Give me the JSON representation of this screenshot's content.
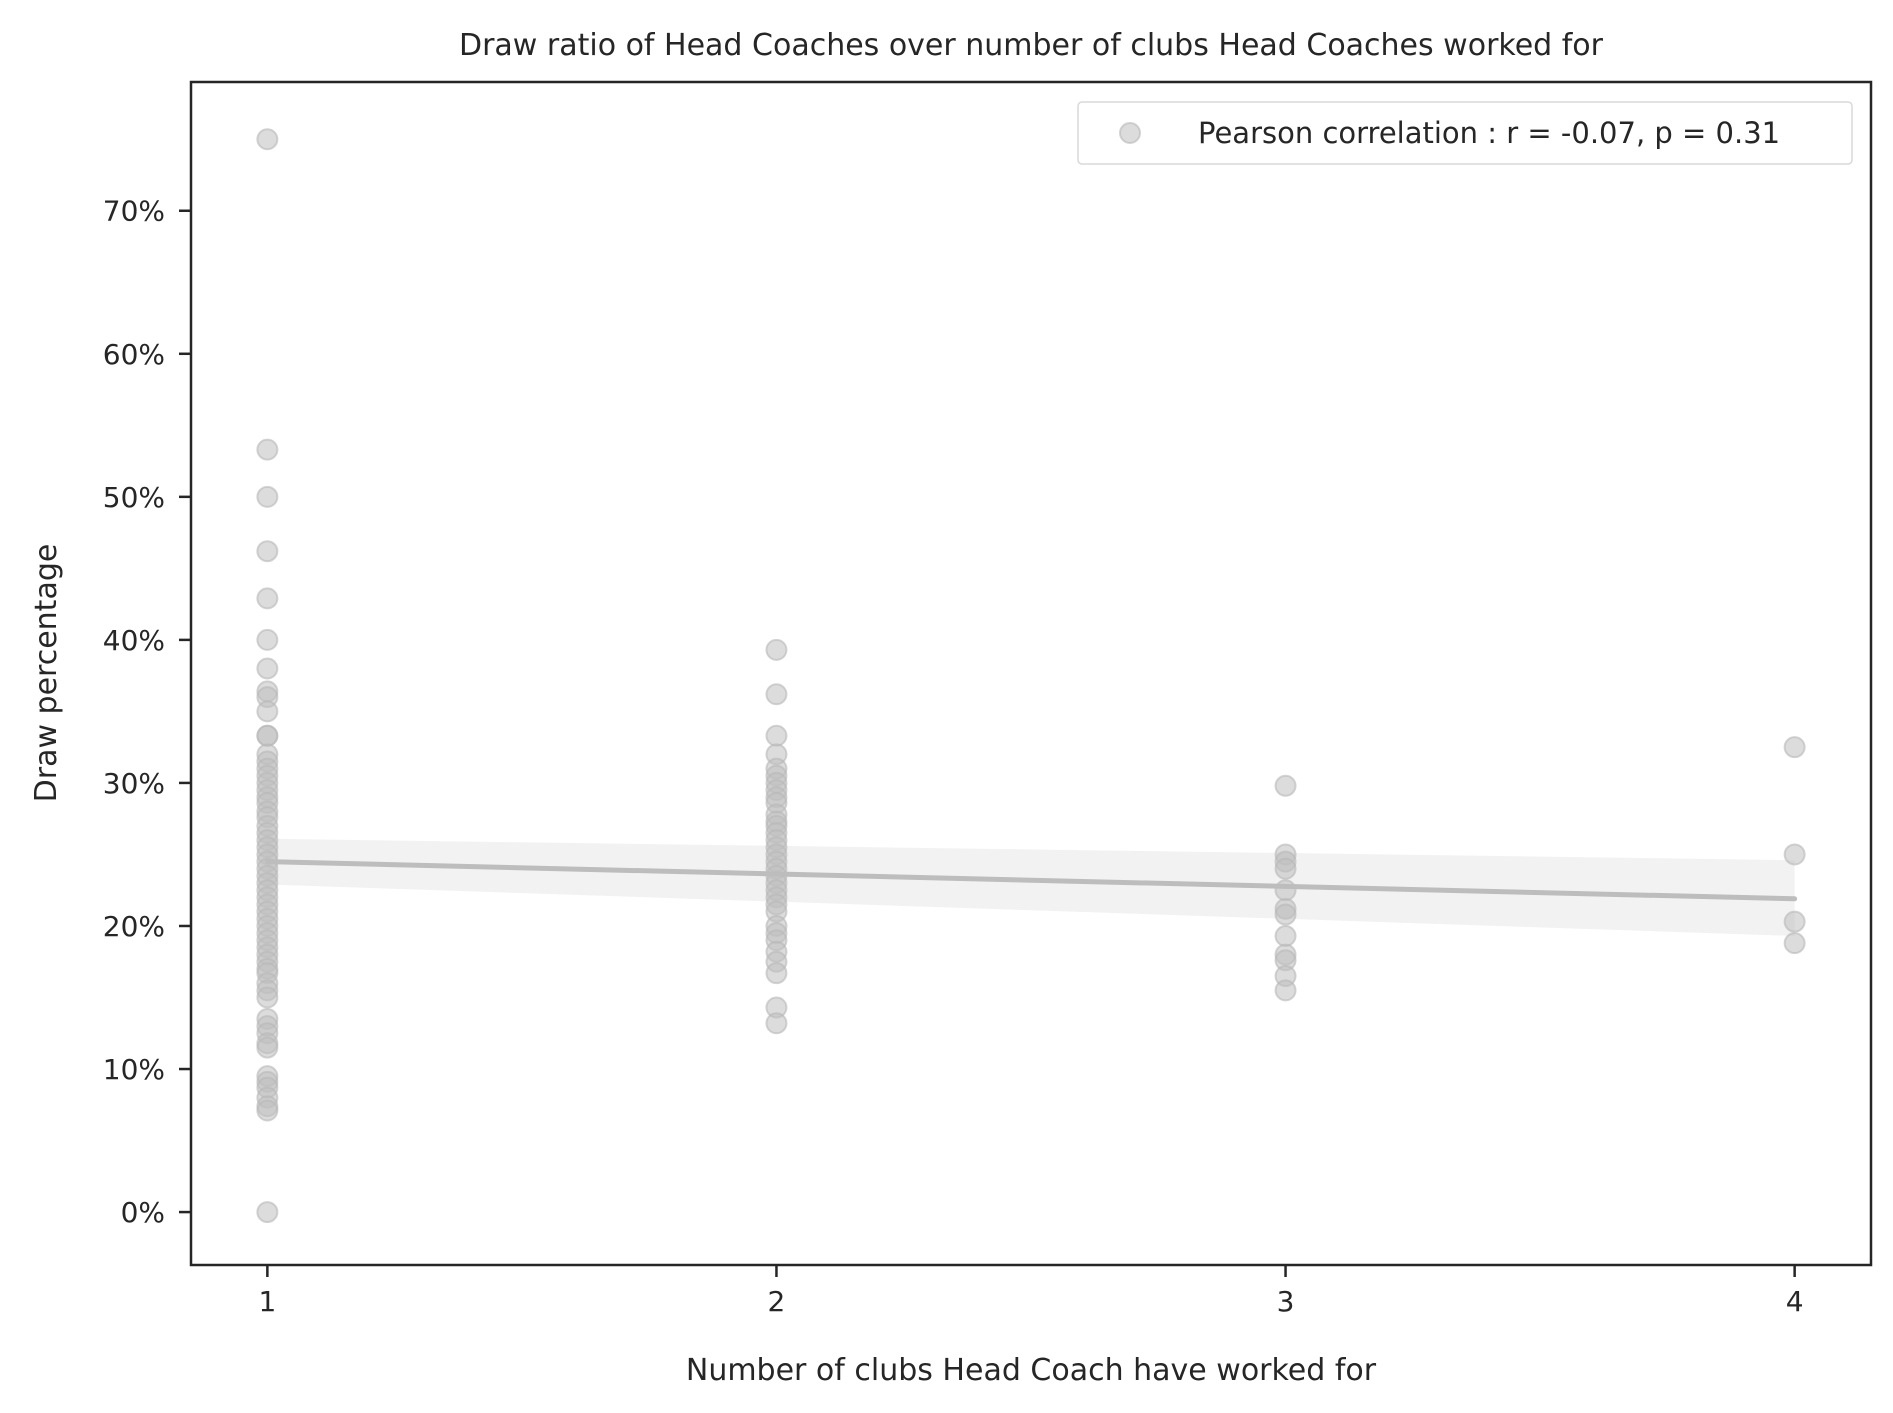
{
  "chart_data": {
    "type": "scatter",
    "title": "Draw ratio of Head Coaches over number of clubs Head Coaches worked for",
    "xlabel": "Number of clubs Head Coach have worked for",
    "ylabel": "Draw percentage",
    "xlim": [
      0.85,
      4.15
    ],
    "ylim": [
      -0.037,
      0.79
    ],
    "x_ticks": [
      1,
      2,
      3,
      4
    ],
    "x_tick_labels": [
      "1",
      "2",
      "3",
      "4"
    ],
    "y_ticks": [
      0,
      0.1,
      0.2,
      0.3,
      0.4,
      0.5,
      0.6,
      0.7
    ],
    "y_tick_labels": [
      "0%",
      "10%",
      "20%",
      "30%",
      "40%",
      "50%",
      "60%",
      "70%"
    ],
    "grid": false,
    "legend": {
      "position": "top-right",
      "label": "Pearson correlation : r = -0.07, p = 0.31"
    },
    "colors": {
      "points": "#c0c0c0",
      "line": "#bdbdbd",
      "band": "#efefef",
      "frame": "#262626"
    },
    "series": [
      {
        "name": "Pearson correlation : r = -0.07, p = 0.31",
        "points": [
          [
            1,
            0.75
          ],
          [
            1,
            0.533
          ],
          [
            1,
            0.5
          ],
          [
            1,
            0.462
          ],
          [
            1,
            0.429
          ],
          [
            1,
            0.4
          ],
          [
            1,
            0.38
          ],
          [
            1,
            0.364
          ],
          [
            1,
            0.36
          ],
          [
            1,
            0.35
          ],
          [
            1,
            0.333
          ],
          [
            1,
            0.333
          ],
          [
            1,
            0.32
          ],
          [
            1,
            0.315
          ],
          [
            1,
            0.31
          ],
          [
            1,
            0.305
          ],
          [
            1,
            0.3
          ],
          [
            1,
            0.295
          ],
          [
            1,
            0.29
          ],
          [
            1,
            0.286
          ],
          [
            1,
            0.28
          ],
          [
            1,
            0.276
          ],
          [
            1,
            0.27
          ],
          [
            1,
            0.265
          ],
          [
            1,
            0.26
          ],
          [
            1,
            0.255
          ],
          [
            1,
            0.25
          ],
          [
            1,
            0.245
          ],
          [
            1,
            0.24
          ],
          [
            1,
            0.235
          ],
          [
            1,
            0.23
          ],
          [
            1,
            0.225
          ],
          [
            1,
            0.22
          ],
          [
            1,
            0.215
          ],
          [
            1,
            0.21
          ],
          [
            1,
            0.205
          ],
          [
            1,
            0.2
          ],
          [
            1,
            0.195
          ],
          [
            1,
            0.19
          ],
          [
            1,
            0.185
          ],
          [
            1,
            0.18
          ],
          [
            1,
            0.175
          ],
          [
            1,
            0.17
          ],
          [
            1,
            0.167
          ],
          [
            1,
            0.16
          ],
          [
            1,
            0.155
          ],
          [
            1,
            0.15
          ],
          [
            1,
            0.135
          ],
          [
            1,
            0.13
          ],
          [
            1,
            0.125
          ],
          [
            1,
            0.118
          ],
          [
            1,
            0.115
          ],
          [
            1,
            0.095
          ],
          [
            1,
            0.091
          ],
          [
            1,
            0.087
          ],
          [
            1,
            0.08
          ],
          [
            1,
            0.074
          ],
          [
            1,
            0.071
          ],
          [
            1,
            0.0
          ],
          [
            2,
            0.393
          ],
          [
            2,
            0.362
          ],
          [
            2,
            0.333
          ],
          [
            2,
            0.32
          ],
          [
            2,
            0.31
          ],
          [
            2,
            0.305
          ],
          [
            2,
            0.3
          ],
          [
            2,
            0.295
          ],
          [
            2,
            0.29
          ],
          [
            2,
            0.286
          ],
          [
            2,
            0.278
          ],
          [
            2,
            0.273
          ],
          [
            2,
            0.27
          ],
          [
            2,
            0.265
          ],
          [
            2,
            0.26
          ],
          [
            2,
            0.255
          ],
          [
            2,
            0.25
          ],
          [
            2,
            0.245
          ],
          [
            2,
            0.24
          ],
          [
            2,
            0.235
          ],
          [
            2,
            0.23
          ],
          [
            2,
            0.225
          ],
          [
            2,
            0.22
          ],
          [
            2,
            0.215
          ],
          [
            2,
            0.21
          ],
          [
            2,
            0.2
          ],
          [
            2,
            0.195
          ],
          [
            2,
            0.19
          ],
          [
            2,
            0.182
          ],
          [
            2,
            0.175
          ],
          [
            2,
            0.167
          ],
          [
            2,
            0.143
          ],
          [
            2,
            0.132
          ],
          [
            3,
            0.298
          ],
          [
            3,
            0.25
          ],
          [
            3,
            0.245
          ],
          [
            3,
            0.24
          ],
          [
            3,
            0.225
          ],
          [
            3,
            0.212
          ],
          [
            3,
            0.208
          ],
          [
            3,
            0.193
          ],
          [
            3,
            0.18
          ],
          [
            3,
            0.176
          ],
          [
            3,
            0.165
          ],
          [
            3,
            0.155
          ],
          [
            4,
            0.325
          ],
          [
            4,
            0.25
          ],
          [
            4,
            0.203
          ],
          [
            4,
            0.188
          ]
        ]
      }
    ],
    "regression": {
      "x": [
        1,
        4
      ],
      "y": [
        0.245,
        0.219
      ],
      "ci_lower": [
        0.229,
        0.193
      ],
      "ci_upper": [
        0.261,
        0.246
      ]
    }
  }
}
